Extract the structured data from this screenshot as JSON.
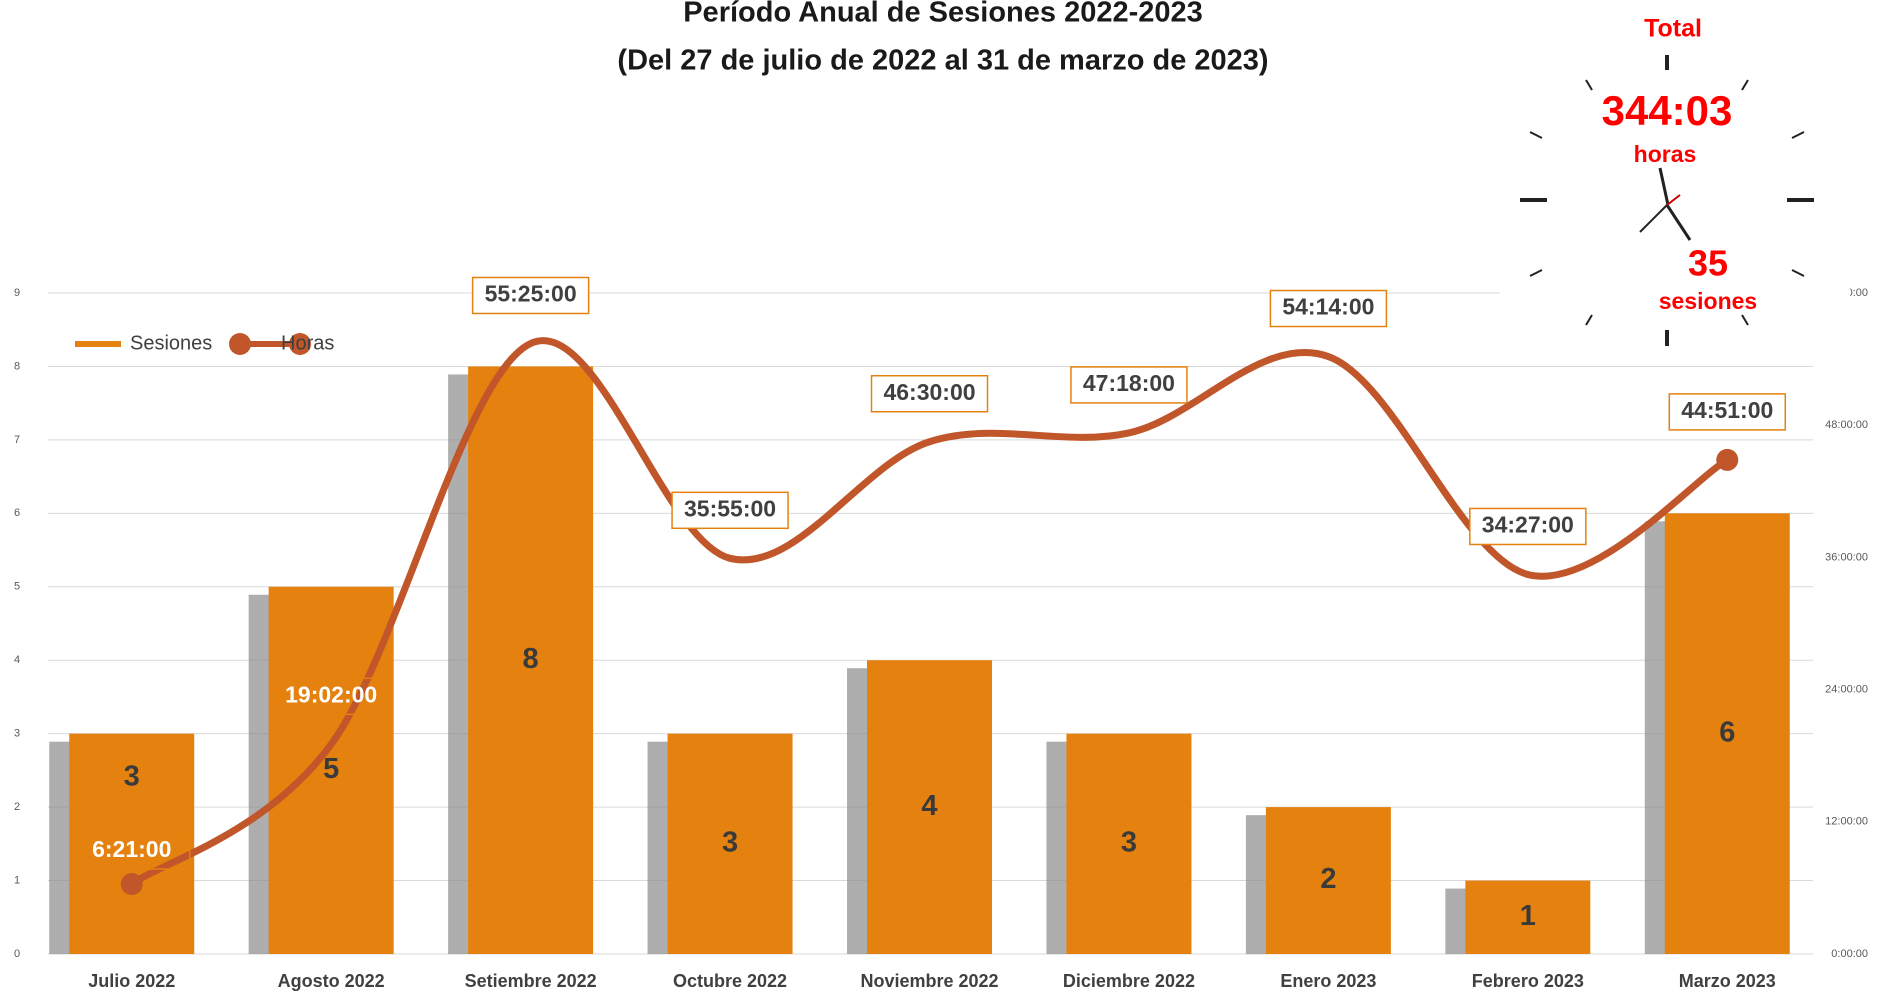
{
  "chart_data": {
    "type": "bar_line",
    "title": "Período Anual de Sesiones 2022-2023",
    "subtitle": "(Del 27 de julio de 2022  al 31 de marzo de 2023)",
    "categories": [
      "Julio 2022",
      "Agosto 2022",
      "Setiembre 2022",
      "Octubre 2022",
      "Noviembre  2022",
      "Diciembre 2022",
      "Enero 2023",
      "Febrero 2023",
      "Marzo 2023"
    ],
    "series": [
      {
        "name": "Sesiones",
        "type": "bar",
        "color": "#e5820f",
        "values": [
          3,
          5,
          8,
          3,
          4,
          3,
          2,
          1,
          6
        ]
      },
      {
        "name": "Horas",
        "type": "line",
        "axis": "y2",
        "color": "#c0562a",
        "smooth": true,
        "values": [
          6.35,
          19.0333,
          55.4167,
          35.9167,
          46.5,
          47.3,
          54.2333,
          34.45,
          44.85
        ],
        "value_labels": [
          "6:21:00",
          "19:02:00",
          "55:25:00",
          "35:55:00",
          "46:30:00",
          "47:18:00",
          "54:14:00",
          "34:27:00",
          "44:51:00"
        ]
      }
    ],
    "ylim": [
      0,
      9
    ],
    "yticks": [
      0,
      1,
      2,
      3,
      4,
      5,
      6,
      7,
      8,
      9
    ],
    "y2lim": [
      0,
      60
    ],
    "y2ticks": [
      {
        "value": 0,
        "label": "0:00:00"
      },
      {
        "value": 12,
        "label": "12:00:00"
      },
      {
        "value": 24,
        "label": "24:00:00"
      },
      {
        "value": 36,
        "label": "36:00:00"
      },
      {
        "value": 48,
        "label": "48:00:00"
      },
      {
        "value": 60,
        "label": "60:00:00"
      }
    ],
    "grid": true,
    "legend": "top-left",
    "annotations": {
      "total": "Total",
      "hours_total": "344:03",
      "hours_unit": "horas",
      "sessions_total": "35",
      "sessions_unit": "sesiones"
    }
  }
}
